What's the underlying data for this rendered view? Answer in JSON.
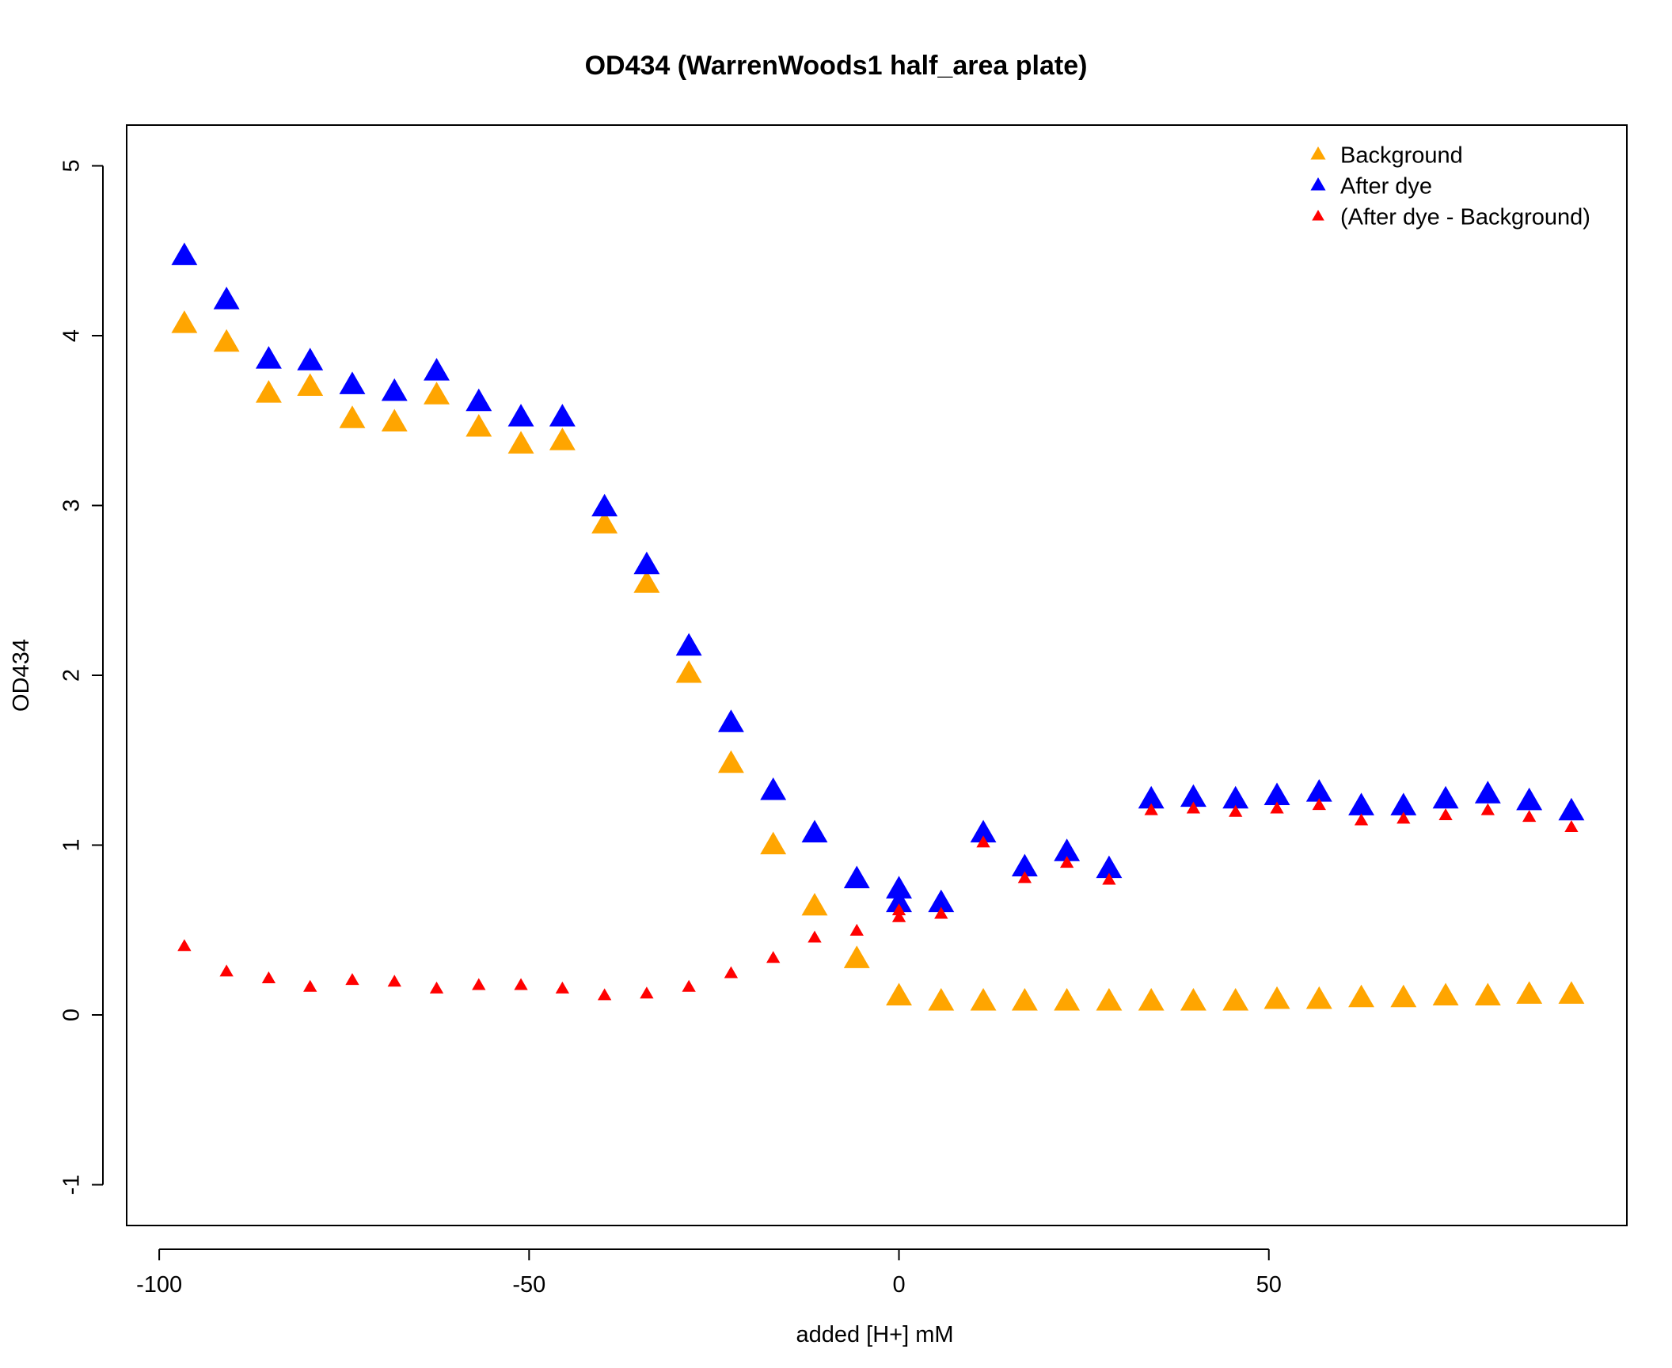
{
  "chart_data": {
    "type": "scatter",
    "title": "OD434 (WarrenWoods1 half_area plate)",
    "xlabel": "added [H+] mM",
    "ylabel": "OD434",
    "xlim": [
      -104.4,
      98.4
    ],
    "ylim": [
      -1.24,
      5.24
    ],
    "xticks": [
      -100,
      -50,
      0,
      50
    ],
    "yticks": [
      -1,
      0,
      1,
      2,
      3,
      4,
      5
    ],
    "grid": false,
    "legend_position": "top-right",
    "x": [
      -96.6,
      -90.9,
      -85.2,
      -79.6,
      -73.9,
      -68.2,
      -62.5,
      -56.8,
      -51.1,
      -45.5,
      -39.8,
      -34.1,
      -28.4,
      -22.7,
      -17.0,
      -11.4,
      -5.7,
      0.0,
      5.7,
      11.4,
      17.0,
      22.7,
      28.4,
      34.1,
      39.8,
      45.5,
      51.1,
      56.8,
      62.5,
      68.2,
      73.9,
      79.6,
      85.2,
      90.9
    ],
    "series": [
      {
        "name": "Background",
        "color": "#FFA500",
        "marker_size": "large",
        "values": [
          4.06,
          3.95,
          3.65,
          3.69,
          3.5,
          3.48,
          3.64,
          3.45,
          3.35,
          3.37,
          2.88,
          2.53,
          2.0,
          1.47,
          0.99,
          0.63,
          0.32,
          0.1,
          0.07,
          0.07,
          0.07,
          0.07,
          0.07,
          0.07,
          0.07,
          0.07,
          0.08,
          0.08,
          0.09,
          0.09,
          0.1,
          0.1,
          0.11,
          0.11
        ]
      },
      {
        "name": "After dye",
        "color": "#0000FF",
        "marker_size": "large",
        "values": [
          4.46,
          4.2,
          3.85,
          3.84,
          3.7,
          3.66,
          3.78,
          3.6,
          3.51,
          3.51,
          2.98,
          2.64,
          2.16,
          1.71,
          1.31,
          1.06,
          0.79,
          0.73,
          0.65,
          1.06,
          0.86,
          0.95,
          0.85,
          1.26,
          1.27,
          1.26,
          1.28,
          1.3,
          1.22,
          1.22,
          1.26,
          1.29,
          1.25,
          1.19
        ]
      },
      {
        "name": "(After dye - Background)",
        "color": "#FF0000",
        "marker_size": "small",
        "values": [
          0.4,
          0.25,
          0.21,
          0.16,
          0.2,
          0.19,
          0.15,
          0.17,
          0.17,
          0.15,
          0.11,
          0.12,
          0.16,
          0.24,
          0.33,
          0.45,
          0.49,
          0.61,
          0.59,
          1.01,
          0.8,
          0.89,
          0.79,
          1.2,
          1.21,
          1.19,
          1.21,
          1.23,
          1.14,
          1.15,
          1.17,
          1.2,
          1.16,
          1.1
        ]
      }
    ],
    "extra_points": [
      {
        "series": "After dye",
        "x": 0.0,
        "y": 0.65
      },
      {
        "series": "(After dye - Background)",
        "x": 0.0,
        "y": 0.57
      }
    ]
  }
}
